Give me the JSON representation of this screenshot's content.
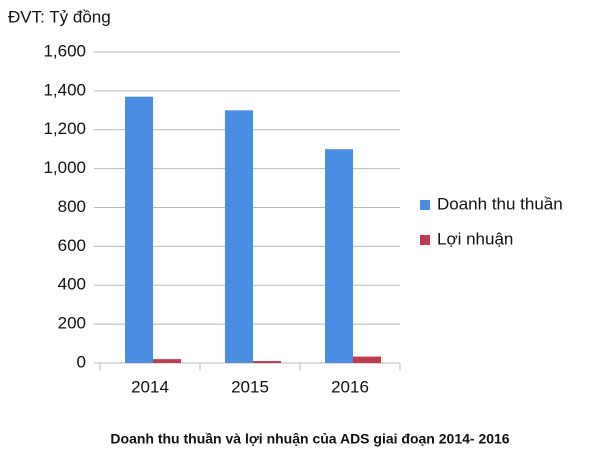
{
  "chart_data": {
    "type": "bar",
    "unit_label": "ĐVT: Tỷ đồng",
    "title": "Doanh thu thuần và lợi nhuận của ADS giai đoạn 2014- 2016",
    "categories": [
      "2014",
      "2015",
      "2016"
    ],
    "series": [
      {
        "name": "Doanh thu thuần",
        "color": "#4a8ee3",
        "values": [
          1370,
          1300,
          1100
        ]
      },
      {
        "name": "Lợi nhuận",
        "color": "#c23a4e",
        "values": [
          20,
          10,
          33
        ]
      }
    ],
    "ylim": [
      0,
      1600
    ],
    "yticks": [
      0,
      200,
      400,
      600,
      800,
      {
        "value": 1000,
        "label": "1,000"
      },
      {
        "value": 1200,
        "label": "1,200"
      },
      {
        "value": 1400,
        "label": "1,400"
      },
      {
        "value": 1600,
        "label": "1,600"
      }
    ],
    "grid": true
  }
}
